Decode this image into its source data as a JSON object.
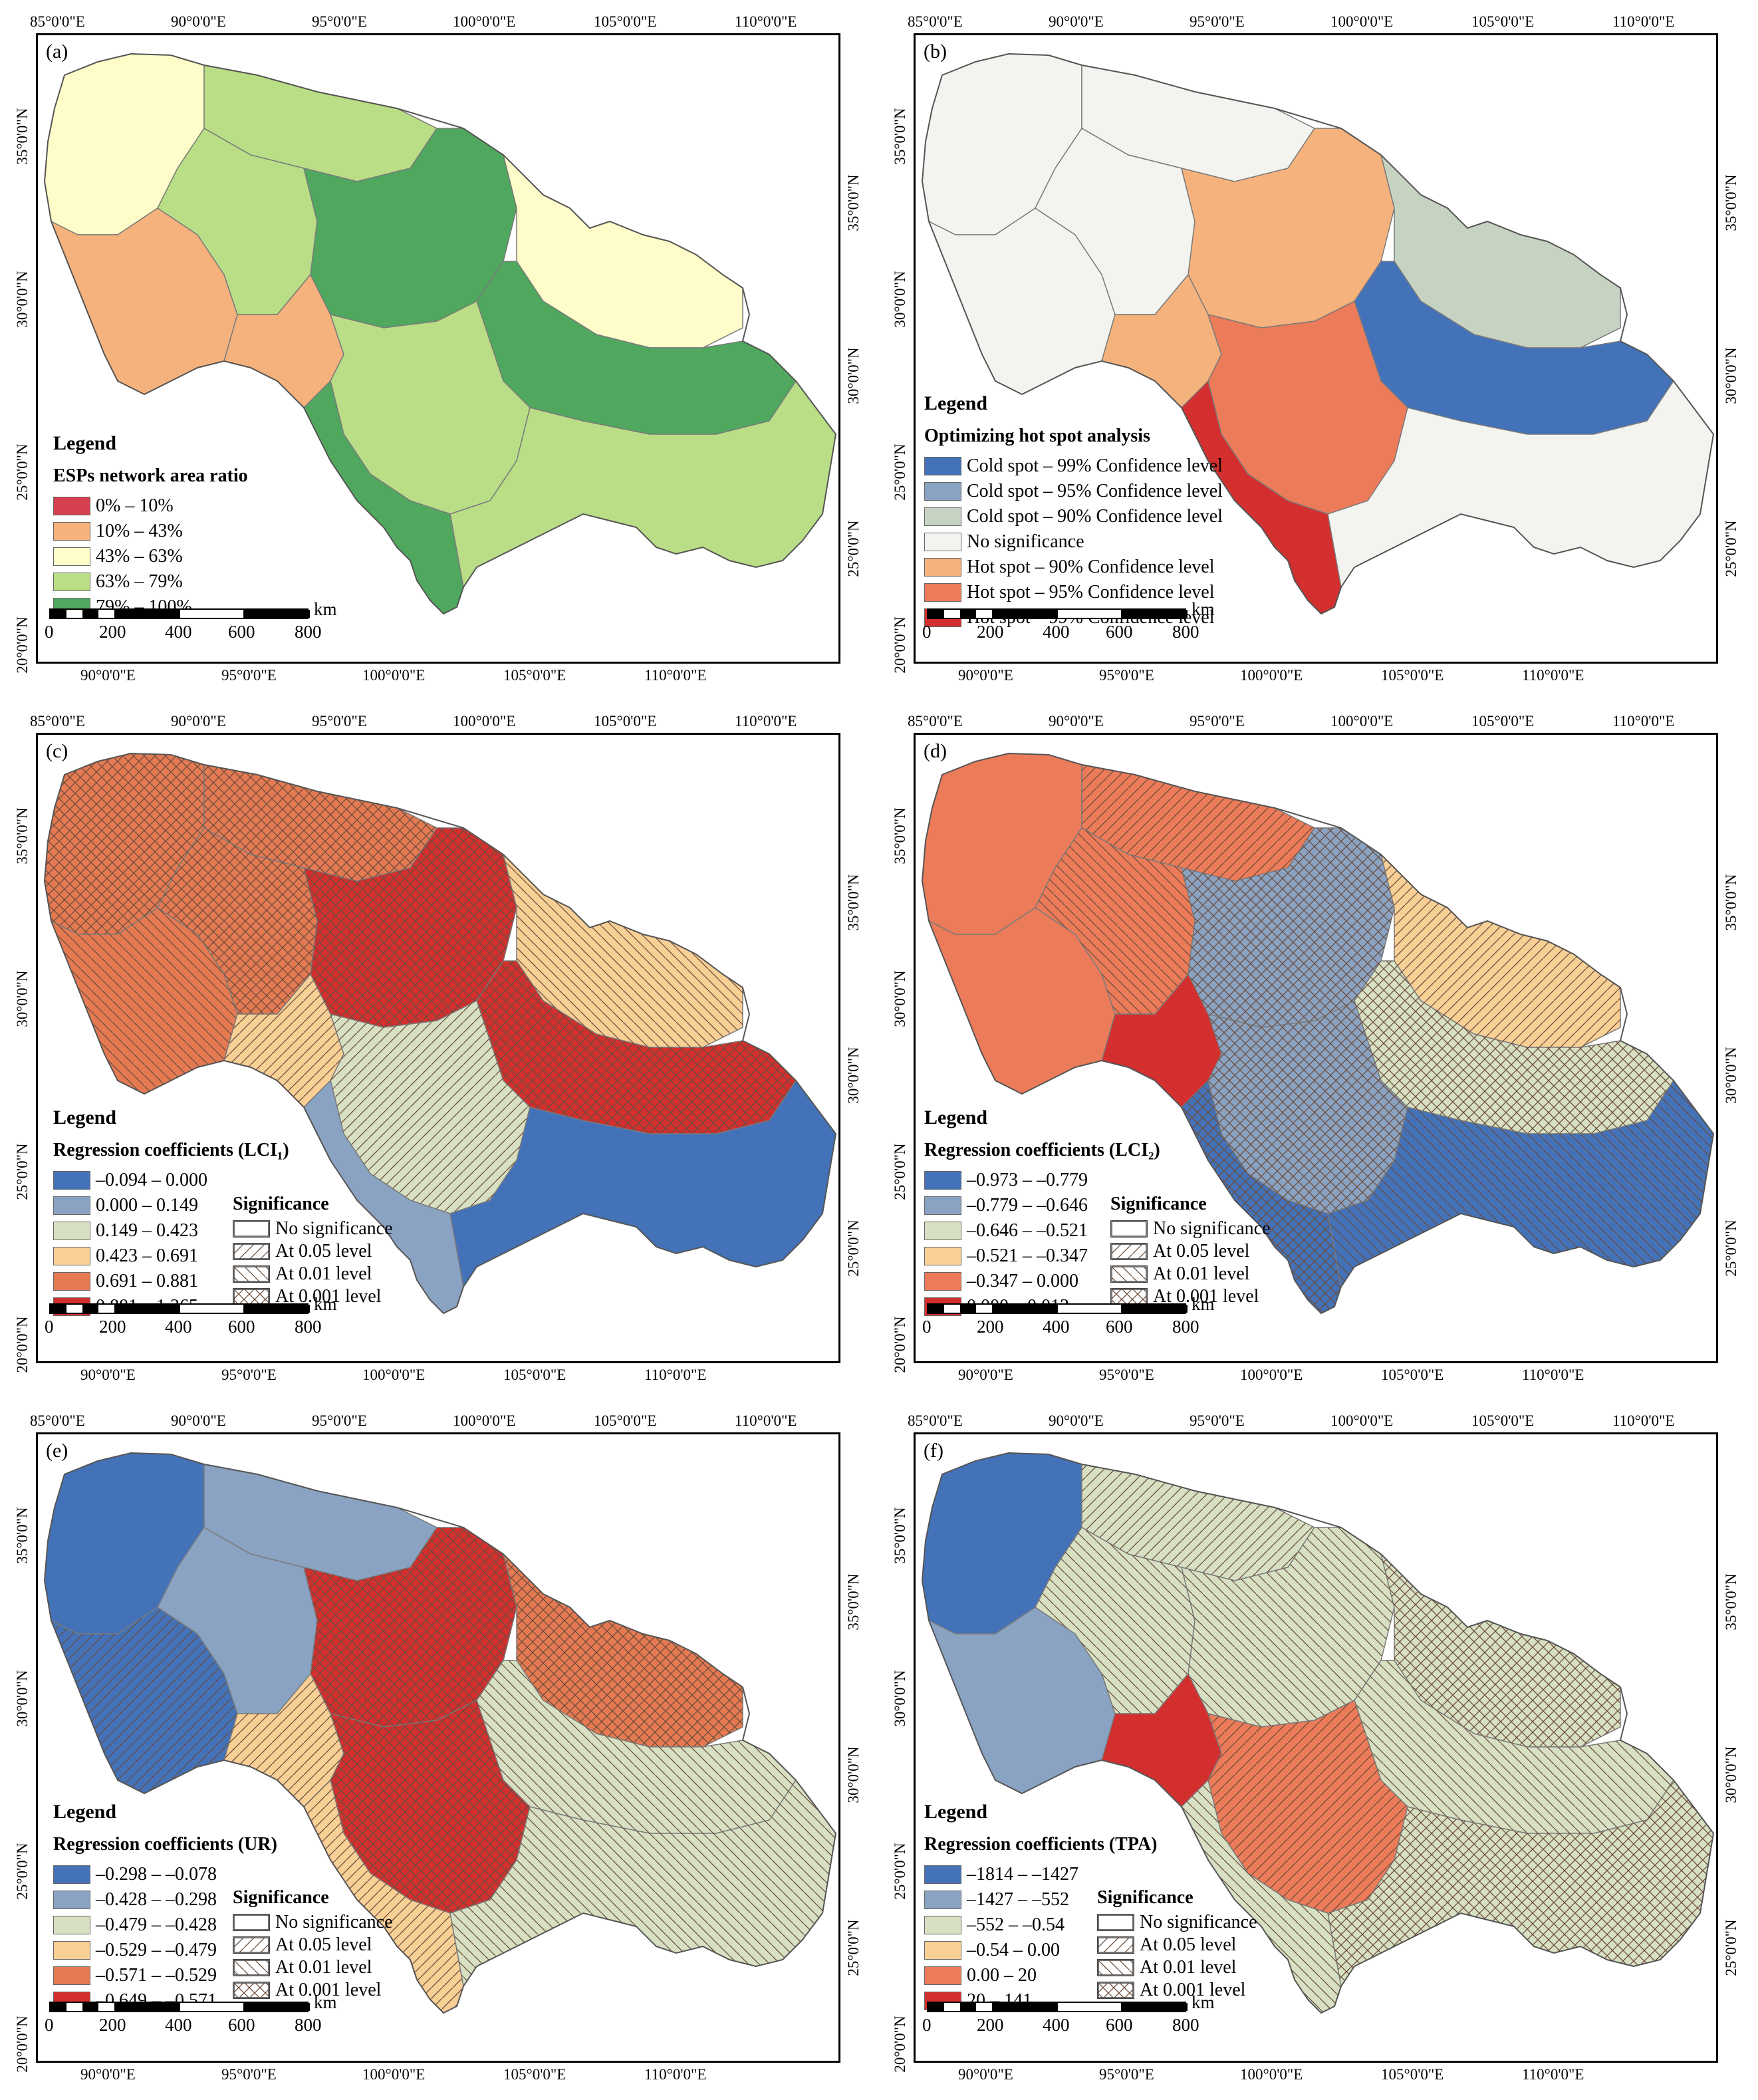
{
  "top_lon_labels": [
    "85°0'0\"E",
    "90°0'0\"E",
    "95°0'0\"E",
    "100°0'0\"E",
    "105°0'0\"E",
    "110°0'0\"E"
  ],
  "bottom_lon_labels": [
    "90°0'0\"E",
    "95°0'0\"E",
    "100°0'0\"E",
    "105°0'0\"E",
    "110°0'0\"E"
  ],
  "left_lat_labels": [
    "35°0'0\"N",
    "30°0'0\"N",
    "25°0'0\"N",
    "20°0'0\"N"
  ],
  "right_lat_labels": [
    "35°0'0\"N",
    "30°0'0\"N",
    "25°0'0\"N"
  ],
  "scale": {
    "unit": "km",
    "ticks": [
      "0",
      "200",
      "400",
      "600",
      "800"
    ]
  },
  "legend_word": "Legend",
  "significance": {
    "title": "Significance",
    "items": [
      "No significance",
      "At 0.05 level",
      "At 0.01 level",
      "At 0.001 level"
    ]
  },
  "panels": [
    {
      "letter": "(a)",
      "title": "ESPs network area ratio",
      "classes": [
        {
          "label": "0% – 10%",
          "color": "#d6404e"
        },
        {
          "label": "10% – 43%",
          "color": "#f5b27c"
        },
        {
          "label": "43% – 63%",
          "color": "#fefcc8"
        },
        {
          "label": "63% – 79%",
          "color": "#b9de86"
        },
        {
          "label": "79% – 100%",
          "color": "#4fa85e"
        }
      ]
    },
    {
      "letter": "(b)",
      "title": "Optimizing hot spot analysis",
      "classes": [
        {
          "label": "Cold spot – 99% Confidence level",
          "color": "#4472b8"
        },
        {
          "label": "Cold spot – 95% Confidence level",
          "color": "#8aa3c3"
        },
        {
          "label": "Cold spot – 90% Confidence level",
          "color": "#c7d3c2"
        },
        {
          "label": "No significance",
          "color": "#f3f3f0"
        },
        {
          "label": "Hot spot – 90% Confidence level",
          "color": "#f5b27c"
        },
        {
          "label": "Hot spot – 95% Confidence level",
          "color": "#ec7b59"
        },
        {
          "label": "Hot spot – 99% Confidence level",
          "color": "#d32f2f"
        }
      ]
    },
    {
      "letter": "(c)",
      "title": "Regression coefficients (LCI₁)",
      "classes": [
        {
          "label": "–0.094 – 0.000",
          "color": "#4472b8"
        },
        {
          "label": "0.000 – 0.149",
          "color": "#8aa3c3"
        },
        {
          "label": "0.149 – 0.423",
          "color": "#d7e0c2"
        },
        {
          "label": "0.423 – 0.691",
          "color": "#f8cf95"
        },
        {
          "label": "0.691 – 0.881",
          "color": "#e57a52"
        },
        {
          "label": "0.881 – 1.265",
          "color": "#d32f2f"
        }
      ]
    },
    {
      "letter": "(d)",
      "title": "Regression coefficients (LCI₂)",
      "classes": [
        {
          "label": "–0.973 – –0.779",
          "color": "#4472b8"
        },
        {
          "label": "–0.779 – –0.646",
          "color": "#8aa3c3"
        },
        {
          "label": "–0.646 – –0.521",
          "color": "#d7e0c2"
        },
        {
          "label": "–0.521 – –0.347",
          "color": "#f8cf95"
        },
        {
          "label": "–0.347 – 0.000",
          "color": "#ec7b59"
        },
        {
          "label": "0.000 – 0.013",
          "color": "#d32f2f"
        }
      ]
    },
    {
      "letter": "(e)",
      "title": "Regression coefficients (UR)",
      "classes": [
        {
          "label": "–0.298 – –0.078",
          "color": "#4472b8"
        },
        {
          "label": "–0.428 – –0.298",
          "color": "#8aa3c3"
        },
        {
          "label": "–0.479 – –0.428",
          "color": "#d7e0c2"
        },
        {
          "label": "–0.529 – –0.479",
          "color": "#f8cf95"
        },
        {
          "label": "–0.571 – –0.529",
          "color": "#e57a52"
        },
        {
          "label": "–0.649 – –0.571",
          "color": "#d32f2f"
        }
      ]
    },
    {
      "letter": "(f)",
      "title": "Regression coefficients (TPA)",
      "classes": [
        {
          "label": "–1814 – –1427",
          "color": "#4472b8"
        },
        {
          "label": "–1427 – –552",
          "color": "#8aa3c3"
        },
        {
          "label": "–552 – –0.54",
          "color": "#d7e0c2"
        },
        {
          "label": "–0.54 – 0.00",
          "color": "#f8cf95"
        },
        {
          "label": "0.00 – 20",
          "color": "#ec7b59"
        },
        {
          "label": "20 – 141",
          "color": "#d32f2f"
        }
      ]
    }
  ]
}
